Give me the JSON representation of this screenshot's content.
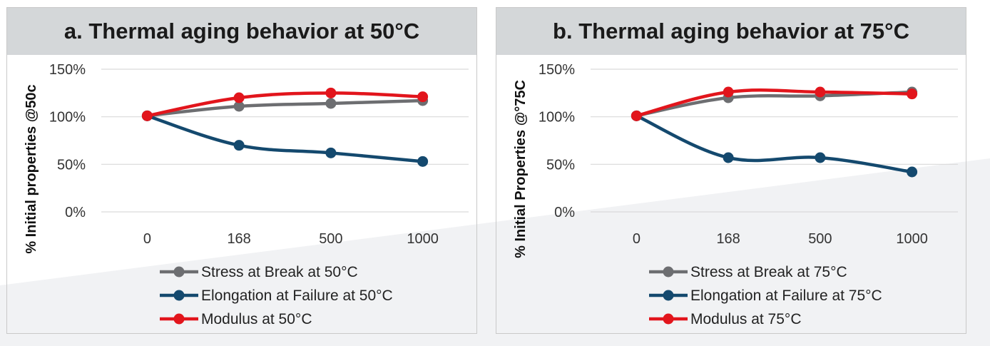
{
  "chart_data": [
    {
      "type": "line",
      "title": "a. Thermal aging behavior at 50°C",
      "xlabel": "",
      "ylabel": "% Initial properties @50c",
      "categories": [
        "0",
        "168",
        "500",
        "1000"
      ],
      "yticks": [
        "0%",
        "50%",
        "100%",
        "150%"
      ],
      "ylim": [
        0,
        150
      ],
      "grid": true,
      "legend": "bottom",
      "series": [
        {
          "name": "Stress at Break at 50°C",
          "color": "#6d6e71",
          "values": [
            101,
            111,
            114,
            117
          ]
        },
        {
          "name": "Elongation at Failure at 50°C",
          "color": "#14496e",
          "values": [
            101,
            70,
            62,
            53
          ]
        },
        {
          "name": "Modulus at 50°C",
          "color": "#e2151c",
          "values": [
            101,
            120,
            125,
            121
          ]
        }
      ]
    },
    {
      "type": "line",
      "title": "b. Thermal aging behavior at 75°C",
      "xlabel": "",
      "ylabel": "% Initial Properties @°75C",
      "categories": [
        "0",
        "168",
        "500",
        "1000"
      ],
      "yticks": [
        "0%",
        "50%",
        "100%",
        "150%"
      ],
      "ylim": [
        0,
        150
      ],
      "grid": true,
      "legend": "bottom",
      "series": [
        {
          "name": "Stress at Break at 75°C",
          "color": "#6d6e71",
          "values": [
            101,
            120,
            122,
            126
          ]
        },
        {
          "name": "Elongation at Failure at 75°C",
          "color": "#14496e",
          "values": [
            101,
            57,
            57,
            42
          ]
        },
        {
          "name": "Modulus at 75°C",
          "color": "#e2151c",
          "values": [
            101,
            126,
            126,
            124
          ]
        }
      ]
    }
  ]
}
